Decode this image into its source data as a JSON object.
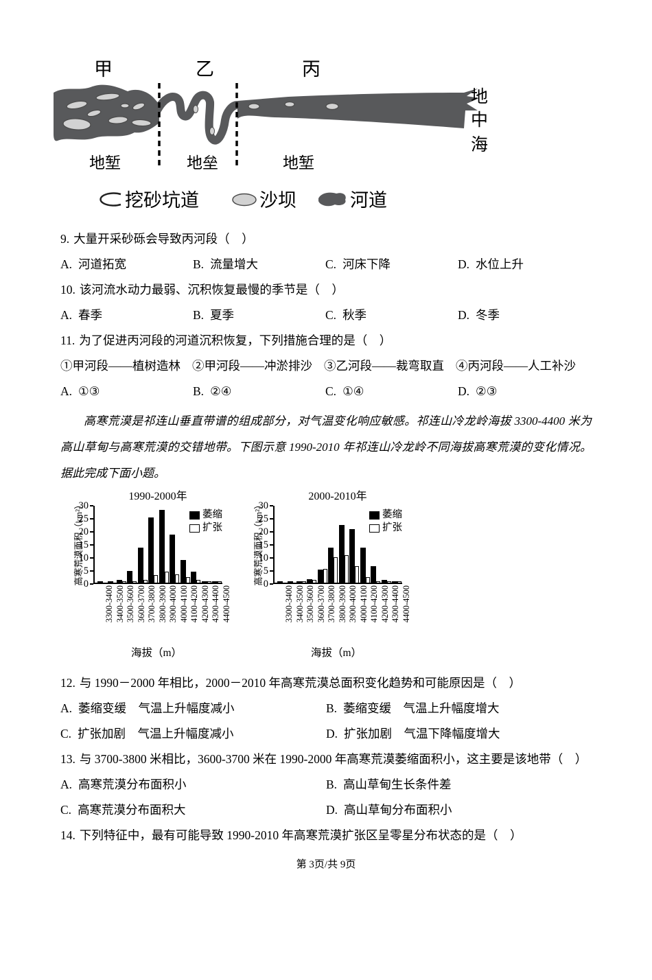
{
  "page": {
    "footer": "第 3页/共 9页"
  },
  "diagram": {
    "section_labels": [
      "甲",
      "乙",
      "丙"
    ],
    "zone_labels": [
      "地堑",
      "地垒",
      "地堑"
    ],
    "sea_chars": [
      "地",
      "中",
      "海"
    ],
    "legend": [
      {
        "icon": "sand-mining-tunnel-icon",
        "label": "挖砂坑道"
      },
      {
        "icon": "sandbar-icon",
        "label": "沙坝"
      },
      {
        "icon": "river-channel-icon",
        "label": "河道"
      }
    ],
    "colors": {
      "channel": "#58595b",
      "sandbar": "#d2d2d2",
      "outline": "#3a3a3a"
    }
  },
  "questions": [
    {
      "number": "9.",
      "text": "大量开采砂砾会导致丙河段（　）",
      "options": [
        {
          "label": "A.",
          "text": "河道拓宽"
        },
        {
          "label": "B.",
          "text": "流量增大"
        },
        {
          "label": "C.",
          "text": "河床下降"
        },
        {
          "label": "D.",
          "text": "水位上升"
        }
      ]
    },
    {
      "number": "10.",
      "text": "该河流水动力最弱、沉积恢复最慢的季节是（　）",
      "options": [
        {
          "label": "A.",
          "text": "春季"
        },
        {
          "label": "B.",
          "text": "夏季"
        },
        {
          "label": "C.",
          "text": "秋季"
        },
        {
          "label": "D.",
          "text": "冬季"
        }
      ]
    },
    {
      "number": "11.",
      "text": "为了促进丙河段的河道沉积恢复，下列措施合理的是（　）",
      "sub_items": [
        "①甲河段——植树造林",
        "②甲河段——冲淤排沙",
        "③乙河段——裁弯取直",
        "④丙河段——人工补沙"
      ],
      "options": [
        {
          "label": "A.",
          "text": "①③"
        },
        {
          "label": "B.",
          "text": "②④"
        },
        {
          "label": "C.",
          "text": "①④"
        },
        {
          "label": "D.",
          "text": "②③"
        }
      ]
    },
    {
      "number": "12.",
      "text": "与 1990－2000 年相比，2000－2010 年高寒荒漠总面积变化趋势和可能原因是（　）",
      "options": [
        {
          "label": "A.",
          "text": "萎缩变缓　气温上升幅度减小"
        },
        {
          "label": "B.",
          "text": "萎缩变缓　气温上升幅度增大"
        },
        {
          "label": "C.",
          "text": "扩张加剧　气温上升幅度减小"
        },
        {
          "label": "D.",
          "text": "扩张加剧　气温下降幅度增大"
        }
      ]
    },
    {
      "number": "13.",
      "text": "与 3700-3800 米相比，3600-3700 米在 1990-2000 年高寒荒漠萎缩面积小，这主要是该地带（　）",
      "options": [
        {
          "label": "A.",
          "text": "高寒荒漠分布面积小"
        },
        {
          "label": "B.",
          "text": "高山草甸生长条件差"
        },
        {
          "label": "C.",
          "text": "高寒荒漠分布面积大"
        },
        {
          "label": "D.",
          "text": "高山草甸分布面积小"
        }
      ]
    },
    {
      "number": "14.",
      "text": "下列特征中，最有可能导致 1990-2010 年高寒荒漠扩张区呈零星分布状态的是（　）"
    }
  ],
  "passage": "高寒荒漠是祁连山垂直带谱的组成部分，对气温变化响应敏感。祁连山冷龙岭海拔 3300-4400 米为高山草甸与高寒荒漠的交错地带。下图示意 1990-2010 年祁连山冷龙岭不同海拔高寒荒漠的变化情况。据此完成下面小题。",
  "chart_data": [
    {
      "type": "bar",
      "title": "1990-2000年",
      "categories": [
        "3300-3400",
        "3400-3500",
        "3500-3600",
        "3600-3700",
        "3700-3800",
        "3800-3900",
        "3900-4000",
        "4000-4100",
        "4100-4200",
        "4200-4300",
        "4300-4400",
        "4400-4500"
      ],
      "series": [
        {
          "name": "萎缩",
          "color": "#000000",
          "values": [
            0.3,
            0.3,
            1.1,
            4.5,
            13.5,
            25,
            28,
            18.5,
            8.7,
            4.3,
            0.6,
            0.3
          ]
        },
        {
          "name": "扩张",
          "color": "#ffffff",
          "values": [
            0,
            0,
            0.2,
            0.4,
            1,
            2.9,
            4.3,
            3.2,
            2,
            1,
            0.3,
            0.1
          ]
        }
      ],
      "xlabel": "海拔（m）",
      "ylabel": "高寒荒漠面积（km²）",
      "ylim": [
        0,
        30
      ],
      "yticks": [
        0,
        5,
        10,
        15,
        20,
        25,
        30
      ],
      "grid": false,
      "legend_position": "upper-right"
    },
    {
      "type": "bar",
      "title": "2000-2010年",
      "categories": [
        "3300-3400",
        "3400-3500",
        "3500-3600",
        "3600-3700",
        "3700-3800",
        "3800-3900",
        "3900-4000",
        "4000-4100",
        "4100-4200",
        "4200-4300",
        "4300-4400",
        "4400-4500"
      ],
      "series": [
        {
          "name": "萎缩",
          "color": "#000000",
          "values": [
            0.3,
            0.3,
            0.6,
            1.2,
            5,
            13.5,
            22,
            20.5,
            13.5,
            6.3,
            1,
            0.2
          ]
        },
        {
          "name": "扩张",
          "color": "#ffffff",
          "values": [
            0,
            0,
            0.4,
            1,
            5.2,
            9.7,
            10.5,
            6.2,
            2.2,
            0.4,
            0.3,
            0.1
          ]
        }
      ],
      "xlabel": "海拔（m）",
      "ylabel": "高寒荒漠面积（km²）",
      "ylim": [
        0,
        30
      ],
      "yticks": [
        0,
        5,
        10,
        15,
        20,
        25,
        30
      ],
      "grid": false,
      "legend_position": "upper-right"
    }
  ]
}
